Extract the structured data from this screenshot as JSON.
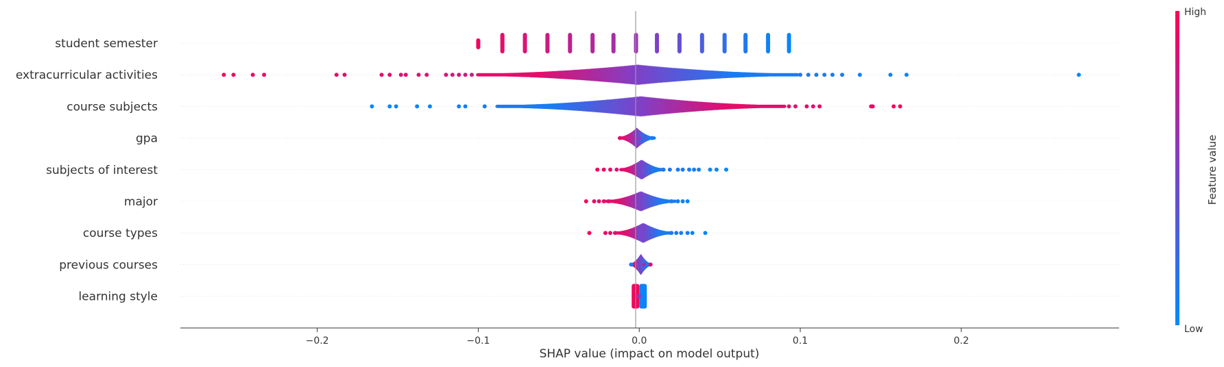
{
  "chart_data": {
    "type": "scatter",
    "subtype": "beeswarm",
    "title": "",
    "xlabel": "SHAP value (impact on model output)",
    "ylabel": "",
    "xlim": [
      -0.285,
      0.298
    ],
    "xticks": [
      -0.2,
      -0.1,
      0.0,
      0.1,
      0.2
    ],
    "xtick_labels": [
      "−0.2",
      "−0.1",
      "0.0",
      "0.1",
      "0.2"
    ],
    "zero_line": true,
    "grid": false,
    "colorbar": {
      "label": "Feature value",
      "high_label": "High",
      "low_label": "Low",
      "high_color": "#ff0052",
      "mid_color": "#7f41c8",
      "low_color": "#008bfb"
    },
    "features": [
      {
        "name": "student semester",
        "points": [
          [
            -0.1,
            0.95
          ],
          [
            -0.085,
            0.9
          ],
          [
            -0.071,
            0.85
          ],
          [
            -0.057,
            0.8
          ],
          [
            -0.043,
            0.75
          ],
          [
            -0.029,
            0.7
          ],
          [
            -0.016,
            0.65
          ],
          [
            -0.002,
            0.6
          ],
          [
            0.011,
            0.5
          ],
          [
            0.025,
            0.4
          ],
          [
            0.039,
            0.3
          ],
          [
            0.053,
            0.2
          ],
          [
            0.066,
            0.12
          ],
          [
            0.08,
            0.06
          ],
          [
            0.093,
            0.02
          ]
        ],
        "style": "ticks"
      },
      {
        "name": "extracurricular activities",
        "points": [
          [
            -0.258,
            0.95
          ],
          [
            -0.252,
            0.95
          ],
          [
            -0.24,
            0.92
          ],
          [
            -0.233,
            0.92
          ],
          [
            -0.188,
            0.9
          ],
          [
            -0.183,
            0.9
          ],
          [
            -0.16,
            0.88
          ],
          [
            -0.155,
            0.88
          ],
          [
            -0.148,
            0.86
          ],
          [
            -0.145,
            0.86
          ],
          [
            -0.137,
            0.85
          ],
          [
            -0.132,
            0.85
          ],
          [
            -0.12,
            0.84
          ],
          [
            -0.116,
            0.82
          ],
          [
            -0.112,
            0.82
          ],
          [
            -0.108,
            0.8
          ],
          [
            -0.104,
            0.8
          ],
          [
            0.1,
            0.15
          ],
          [
            0.105,
            0.15
          ],
          [
            0.11,
            0.12
          ],
          [
            0.115,
            0.1
          ],
          [
            0.12,
            0.1
          ],
          [
            0.126,
            0.08
          ],
          [
            0.137,
            0.05
          ],
          [
            0.156,
            0.04
          ],
          [
            0.166,
            0.03
          ],
          [
            0.273,
            0.02
          ]
        ],
        "band": {
          "from": -0.1,
          "to": 0.098
        },
        "style": "swarm"
      },
      {
        "name": "course subjects",
        "points": [
          [
            -0.166,
            0.02
          ],
          [
            -0.155,
            0.03
          ],
          [
            -0.151,
            0.03
          ],
          [
            -0.138,
            0.05
          ],
          [
            -0.13,
            0.05
          ],
          [
            -0.112,
            0.08
          ],
          [
            -0.108,
            0.08
          ],
          [
            -0.096,
            0.1
          ],
          [
            0.093,
            0.85
          ],
          [
            0.097,
            0.85
          ],
          [
            0.104,
            0.88
          ],
          [
            0.108,
            0.88
          ],
          [
            0.112,
            0.9
          ],
          [
            0.144,
            0.92
          ],
          [
            0.145,
            0.92
          ],
          [
            0.158,
            0.95
          ],
          [
            0.162,
            0.95
          ]
        ],
        "band": {
          "from": -0.088,
          "to": 0.09
        },
        "style": "swarm"
      },
      {
        "name": "gpa",
        "points": [
          [
            -0.012,
            0.9
          ],
          [
            -0.008,
            0.8
          ],
          [
            -0.004,
            0.7
          ],
          [
            0.0,
            0.5
          ],
          [
            0.004,
            0.3
          ],
          [
            0.008,
            0.1
          ]
        ],
        "band": {
          "from": -0.012,
          "to": 0.009
        },
        "style": "swarm"
      },
      {
        "name": "subjects of interest",
        "points": [
          [
            -0.026,
            0.95
          ],
          [
            -0.022,
            0.95
          ],
          [
            -0.018,
            0.9
          ],
          [
            -0.014,
            0.85
          ],
          [
            0.015,
            0.15
          ],
          [
            0.019,
            0.15
          ],
          [
            0.024,
            0.12
          ],
          [
            0.027,
            0.12
          ],
          [
            0.031,
            0.1
          ],
          [
            0.034,
            0.1
          ],
          [
            0.037,
            0.08
          ],
          [
            0.044,
            0.05
          ],
          [
            0.048,
            0.05
          ],
          [
            0.054,
            0.03
          ]
        ],
        "band": {
          "from": -0.012,
          "to": 0.015
        },
        "style": "swarm"
      },
      {
        "name": "major",
        "points": [
          [
            -0.033,
            0.95
          ],
          [
            -0.028,
            0.95
          ],
          [
            -0.025,
            0.92
          ],
          [
            -0.022,
            0.9
          ],
          [
            -0.019,
            0.9
          ],
          [
            0.02,
            0.1
          ],
          [
            0.024,
            0.08
          ],
          [
            0.027,
            0.06
          ],
          [
            0.03,
            0.05
          ]
        ],
        "band": {
          "from": -0.02,
          "to": 0.022
        },
        "style": "swarm"
      },
      {
        "name": "course types",
        "points": [
          [
            -0.031,
            0.95
          ],
          [
            -0.021,
            0.9
          ],
          [
            -0.018,
            0.9
          ],
          [
            -0.015,
            0.88
          ],
          [
            0.02,
            0.12
          ],
          [
            0.023,
            0.1
          ],
          [
            0.026,
            0.1
          ],
          [
            0.03,
            0.08
          ],
          [
            0.033,
            0.06
          ],
          [
            0.041,
            0.04
          ]
        ],
        "band": {
          "from": -0.015,
          "to": 0.02
        },
        "style": "swarm"
      },
      {
        "name": "previous courses",
        "points": [
          [
            -0.005,
            0.1
          ],
          [
            0.003,
            0.6
          ],
          [
            0.007,
            0.9
          ]
        ],
        "band": {
          "from": -0.005,
          "to": 0.007
        },
        "style": "swarm"
      },
      {
        "name": "learning style",
        "points": [
          [
            -0.003,
            0.95
          ],
          [
            0.0,
            0.5
          ],
          [
            0.003,
            0.05
          ]
        ],
        "band": {
          "from": -0.003,
          "to": 0.003
        },
        "style": "split"
      }
    ]
  }
}
